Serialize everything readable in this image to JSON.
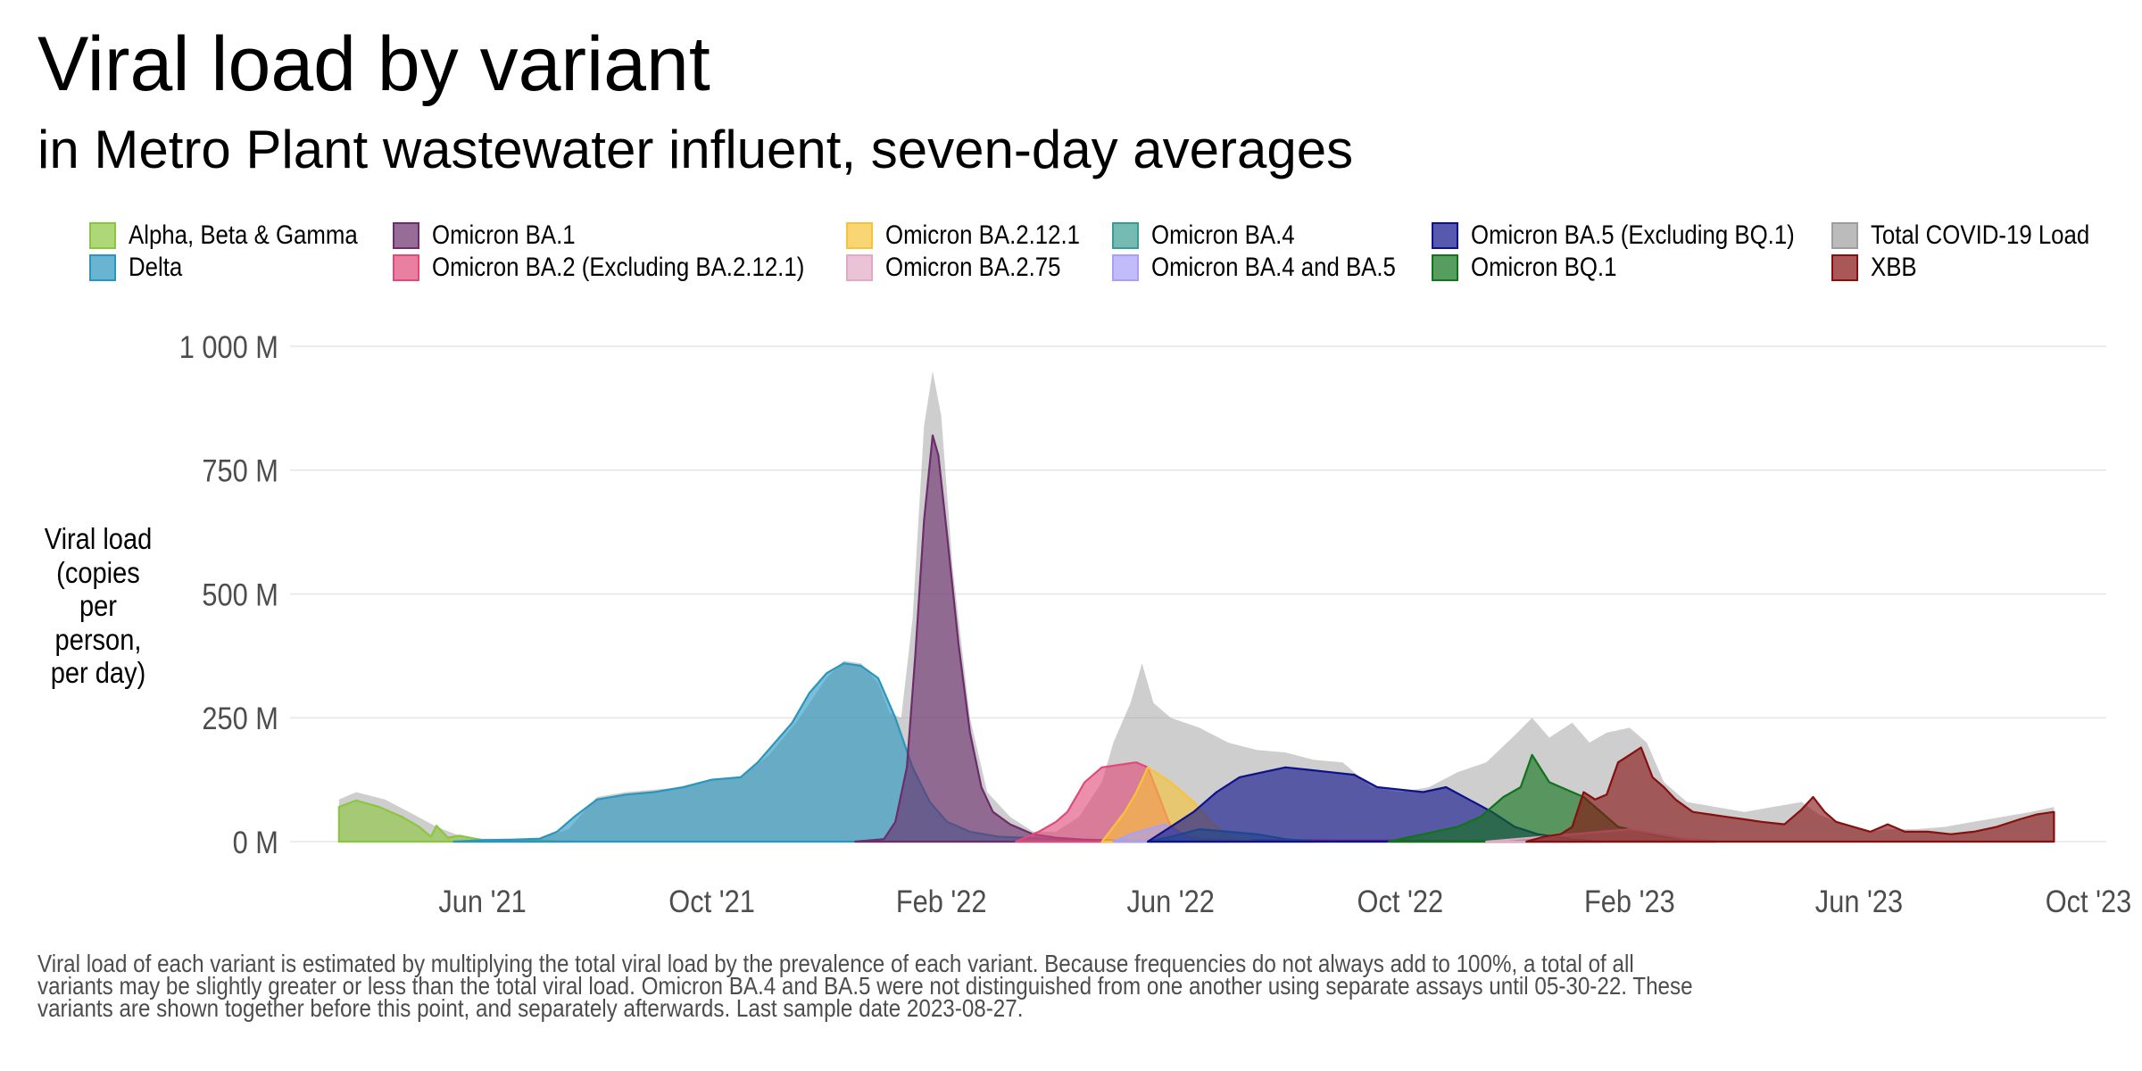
{
  "title": "Viral load by variant",
  "subtitle": "in Metro Plant wastewater influent, seven-day averages",
  "legend": [
    {
      "label": "Alpha, Beta & Gamma",
      "color": "#8CC63F"
    },
    {
      "label": "Delta",
      "color": "#2A96BE"
    },
    {
      "label": "Omicron BA.1",
      "color": "#6B2D6B"
    },
    {
      "label": "Omicron BA.2 (Excluding BA.2.12.1)",
      "color": "#E04A7A"
    },
    {
      "label": "Omicron BA.2.12.1",
      "color": "#F8C339"
    },
    {
      "label": "Omicron BA.2.75",
      "color": "#E3A9C4"
    },
    {
      "label": "Omicron BA.4",
      "color": "#3A9C93"
    },
    {
      "label": "Omicron BA.4 and BA.5",
      "color": "#A8A0F8"
    },
    {
      "label": "Omicron BA.5 (Excluding BQ.1)",
      "color": "#0E128A"
    },
    {
      "label": "Omicron BQ.1",
      "color": "#11731C"
    },
    {
      "label": "Total COVID-19 Load",
      "color": "#9E9E9E"
    },
    {
      "label": "XBB",
      "color": "#861010"
    }
  ],
  "y_axis_label": "Viral load\n(copies\nper\nperson,\nper day)",
  "caption_lines": [
    "Viral load of each variant is estimated by multiplying the total viral load by the prevalence of each variant. Because frequencies do not always add to 100%, a total of all",
    "variants may be slightly greater or less than the total viral load. Omicron BA.4 and BA.5 were not distinguished from one another using separate assays until 05-30-22. These",
    "variants are shown together before this point, and separately afterwards. Last sample date 2023-08-27."
  ],
  "chart_data": {
    "type": "area",
    "title": "Viral load by variant",
    "subtitle": "in Metro Plant wastewater influent, seven-day averages",
    "xlabel": "",
    "ylabel": "Viral load (copies per person, per day)",
    "x_unit": "months since 2021-01-01",
    "xlim": [
      0.9,
      33
    ],
    "ylim": [
      0,
      1000
    ],
    "y_unit": "million copies per person per day",
    "x_ticks": [
      {
        "x": 5,
        "label": "Jun '21"
      },
      {
        "x": 9,
        "label": "Oct '21"
      },
      {
        "x": 13,
        "label": "Feb '22"
      },
      {
        "x": 17,
        "label": "Jun '22"
      },
      {
        "x": 21,
        "label": "Oct '22"
      },
      {
        "x": 25,
        "label": "Feb '23"
      },
      {
        "x": 29,
        "label": "Jun '23"
      },
      {
        "x": 33,
        "label": "Oct '23"
      }
    ],
    "y_ticks": [
      {
        "y": 0,
        "label": "0 M"
      },
      {
        "y": 250,
        "label": "250 M"
      },
      {
        "y": 500,
        "label": "500 M"
      },
      {
        "y": 750,
        "label": "750 M"
      },
      {
        "y": 1000,
        "label": "1 000 M"
      }
    ],
    "grid": true,
    "legend_position": "top",
    "series": [
      {
        "name": "Total COVID-19 Load",
        "color": "#9E9E9E",
        "points": [
          [
            2.5,
            85
          ],
          [
            2.8,
            100
          ],
          [
            3.3,
            85
          ],
          [
            3.8,
            55
          ],
          [
            4.2,
            30
          ],
          [
            4.6,
            12
          ],
          [
            5,
            6
          ],
          [
            5.5,
            6
          ],
          [
            6,
            6
          ],
          [
            6.5,
            25
          ],
          [
            7,
            90
          ],
          [
            7.5,
            100
          ],
          [
            8,
            105
          ],
          [
            8.5,
            110
          ],
          [
            9,
            125
          ],
          [
            9.5,
            130
          ],
          [
            10,
            175
          ],
          [
            10.5,
            245
          ],
          [
            11,
            330
          ],
          [
            11.3,
            365
          ],
          [
            11.6,
            360
          ],
          [
            11.9,
            320
          ],
          [
            12.1,
            260
          ],
          [
            12.3,
            250
          ],
          [
            12.5,
            450
          ],
          [
            12.7,
            840
          ],
          [
            12.85,
            950
          ],
          [
            13,
            860
          ],
          [
            13.2,
            550
          ],
          [
            13.5,
            250
          ],
          [
            13.8,
            100
          ],
          [
            14.2,
            50
          ],
          [
            14.6,
            20
          ],
          [
            15,
            20
          ],
          [
            15.4,
            50
          ],
          [
            15.8,
            120
          ],
          [
            16,
            200
          ],
          [
            16.3,
            280
          ],
          [
            16.5,
            360
          ],
          [
            16.7,
            280
          ],
          [
            17,
            250
          ],
          [
            17.5,
            230
          ],
          [
            18,
            200
          ],
          [
            18.5,
            185
          ],
          [
            19,
            180
          ],
          [
            19.5,
            165
          ],
          [
            20,
            160
          ],
          [
            20.5,
            110
          ],
          [
            21,
            100
          ],
          [
            21.5,
            110
          ],
          [
            22,
            140
          ],
          [
            22.5,
            160
          ],
          [
            23,
            215
          ],
          [
            23.3,
            250
          ],
          [
            23.6,
            210
          ],
          [
            24,
            240
          ],
          [
            24.3,
            200
          ],
          [
            24.6,
            220
          ],
          [
            25,
            230
          ],
          [
            25.3,
            200
          ],
          [
            25.6,
            120
          ],
          [
            26,
            80
          ],
          [
            26.5,
            70
          ],
          [
            27,
            60
          ],
          [
            27.5,
            70
          ],
          [
            28,
            80
          ],
          [
            28.3,
            55
          ],
          [
            28.8,
            30
          ],
          [
            29.2,
            20
          ],
          [
            29.5,
            25
          ],
          [
            30,
            25
          ],
          [
            30.5,
            30
          ],
          [
            31,
            40
          ],
          [
            31.5,
            50
          ],
          [
            32,
            60
          ],
          [
            32.4,
            70
          ]
        ]
      },
      {
        "name": "Alpha, Beta & Gamma",
        "color": "#8CC63F",
        "points": [
          [
            2.5,
            70
          ],
          [
            2.8,
            83
          ],
          [
            3.2,
            70
          ],
          [
            3.6,
            50
          ],
          [
            3.9,
            30
          ],
          [
            4.1,
            10
          ],
          [
            4.2,
            32
          ],
          [
            4.4,
            8
          ],
          [
            4.6,
            12
          ],
          [
            5,
            3
          ],
          [
            5.5,
            2
          ],
          [
            6,
            2
          ],
          [
            6.5,
            0
          ]
        ]
      },
      {
        "name": "Delta",
        "color": "#2A96BE",
        "points": [
          [
            4.5,
            0
          ],
          [
            5,
            3
          ],
          [
            5.5,
            4
          ],
          [
            6,
            6
          ],
          [
            6.3,
            20
          ],
          [
            6.6,
            50
          ],
          [
            7,
            85
          ],
          [
            7.5,
            95
          ],
          [
            8,
            100
          ],
          [
            8.5,
            110
          ],
          [
            9,
            125
          ],
          [
            9.5,
            130
          ],
          [
            9.8,
            160
          ],
          [
            10.1,
            200
          ],
          [
            10.4,
            240
          ],
          [
            10.7,
            300
          ],
          [
            11,
            340
          ],
          [
            11.3,
            360
          ],
          [
            11.6,
            355
          ],
          [
            11.9,
            330
          ],
          [
            12.2,
            250
          ],
          [
            12.5,
            150
          ],
          [
            12.8,
            80
          ],
          [
            13.1,
            40
          ],
          [
            13.5,
            20
          ],
          [
            14,
            10
          ],
          [
            15,
            5
          ],
          [
            16,
            3
          ],
          [
            17,
            2
          ],
          [
            18,
            0
          ]
        ]
      },
      {
        "name": "Omicron BA.1",
        "color": "#6B2D6B",
        "points": [
          [
            11.5,
            0
          ],
          [
            12,
            5
          ],
          [
            12.2,
            40
          ],
          [
            12.4,
            150
          ],
          [
            12.55,
            380
          ],
          [
            12.7,
            650
          ],
          [
            12.85,
            820
          ],
          [
            12.95,
            780
          ],
          [
            13.1,
            620
          ],
          [
            13.3,
            400
          ],
          [
            13.5,
            220
          ],
          [
            13.7,
            110
          ],
          [
            13.9,
            60
          ],
          [
            14.2,
            35
          ],
          [
            14.6,
            15
          ],
          [
            15,
            8
          ],
          [
            15.5,
            4
          ],
          [
            16,
            2
          ],
          [
            16.5,
            0
          ]
        ]
      },
      {
        "name": "Omicron BA.2 (Excluding BA.2.12.1)",
        "color": "#E04A7A",
        "points": [
          [
            14.3,
            0
          ],
          [
            14.7,
            20
          ],
          [
            15,
            40
          ],
          [
            15.2,
            60
          ],
          [
            15.5,
            120
          ],
          [
            15.8,
            150
          ],
          [
            16.1,
            155
          ],
          [
            16.4,
            160
          ],
          [
            16.6,
            150
          ],
          [
            16.8,
            90
          ],
          [
            17,
            30
          ],
          [
            17.3,
            10
          ],
          [
            17.6,
            5
          ],
          [
            18,
            3
          ],
          [
            19,
            3
          ],
          [
            20,
            2
          ],
          [
            21,
            2
          ],
          [
            22,
            1
          ],
          [
            24,
            0
          ]
        ]
      },
      {
        "name": "Omicron BA.2.12.1",
        "color": "#F8C339",
        "points": [
          [
            15.8,
            0
          ],
          [
            16,
            30
          ],
          [
            16.2,
            60
          ],
          [
            16.4,
            100
          ],
          [
            16.6,
            150
          ],
          [
            16.8,
            135
          ],
          [
            17,
            120
          ],
          [
            17.2,
            100
          ],
          [
            17.4,
            80
          ],
          [
            17.7,
            40
          ],
          [
            18,
            10
          ],
          [
            18.5,
            0
          ]
        ]
      },
      {
        "name": "Omicron BA.4 and BA.5",
        "color": "#A8A0F8",
        "points": [
          [
            16,
            0
          ],
          [
            16.3,
            15
          ],
          [
            16.6,
            25
          ],
          [
            16.9,
            35
          ],
          [
            17.1,
            20
          ],
          [
            17.3,
            5
          ],
          [
            17.5,
            0
          ]
        ]
      },
      {
        "name": "Omicron BA.4",
        "color": "#3A9C93",
        "points": [
          [
            16.6,
            0
          ],
          [
            17,
            10
          ],
          [
            17.5,
            25
          ],
          [
            18,
            20
          ],
          [
            18.5,
            15
          ],
          [
            19,
            5
          ],
          [
            19.5,
            0
          ]
        ]
      },
      {
        "name": "Omicron BA.5 (Excluding BQ.1)",
        "color": "#0E128A",
        "points": [
          [
            16.6,
            0
          ],
          [
            17,
            30
          ],
          [
            17.4,
            60
          ],
          [
            17.8,
            100
          ],
          [
            18.2,
            130
          ],
          [
            18.6,
            140
          ],
          [
            19,
            150
          ],
          [
            19.4,
            145
          ],
          [
            19.8,
            140
          ],
          [
            20.2,
            135
          ],
          [
            20.6,
            110
          ],
          [
            21,
            105
          ],
          [
            21.4,
            100
          ],
          [
            21.8,
            110
          ],
          [
            22.2,
            85
          ],
          [
            22.6,
            60
          ],
          [
            23,
            30
          ],
          [
            23.4,
            15
          ],
          [
            24,
            5
          ],
          [
            24.5,
            0
          ]
        ]
      },
      {
        "name": "Omicron BQ.1",
        "color": "#11731C",
        "points": [
          [
            20.8,
            0
          ],
          [
            21.2,
            10
          ],
          [
            21.6,
            20
          ],
          [
            22,
            30
          ],
          [
            22.4,
            50
          ],
          [
            22.8,
            90
          ],
          [
            23.1,
            110
          ],
          [
            23.3,
            175
          ],
          [
            23.6,
            120
          ],
          [
            23.9,
            105
          ],
          [
            24.2,
            90
          ],
          [
            24.5,
            60
          ],
          [
            24.8,
            30
          ],
          [
            25.2,
            20
          ],
          [
            25.6,
            10
          ],
          [
            26,
            5
          ],
          [
            26.5,
            0
          ]
        ]
      },
      {
        "name": "Omicron BA.2.75",
        "color": "#E3A9C4",
        "points": [
          [
            22.5,
            0
          ],
          [
            23,
            5
          ],
          [
            23.5,
            10
          ],
          [
            24,
            15
          ],
          [
            24.5,
            20
          ],
          [
            25,
            25
          ],
          [
            25.5,
            15
          ],
          [
            26,
            5
          ],
          [
            26.5,
            0
          ]
        ]
      },
      {
        "name": "XBB",
        "color": "#861010",
        "points": [
          [
            23.2,
            0
          ],
          [
            23.5,
            10
          ],
          [
            23.8,
            15
          ],
          [
            24,
            30
          ],
          [
            24.2,
            100
          ],
          [
            24.4,
            85
          ],
          [
            24.6,
            95
          ],
          [
            24.8,
            160
          ],
          [
            25,
            175
          ],
          [
            25.2,
            190
          ],
          [
            25.4,
            130
          ],
          [
            25.6,
            110
          ],
          [
            25.8,
            85
          ],
          [
            26.1,
            60
          ],
          [
            26.4,
            55
          ],
          [
            26.7,
            50
          ],
          [
            27,
            45
          ],
          [
            27.3,
            40
          ],
          [
            27.7,
            35
          ],
          [
            28,
            65
          ],
          [
            28.2,
            90
          ],
          [
            28.4,
            60
          ],
          [
            28.6,
            40
          ],
          [
            28.9,
            30
          ],
          [
            29.2,
            20
          ],
          [
            29.5,
            35
          ],
          [
            29.8,
            20
          ],
          [
            30.2,
            20
          ],
          [
            30.6,
            15
          ],
          [
            31,
            20
          ],
          [
            31.4,
            30
          ],
          [
            31.8,
            45
          ],
          [
            32.1,
            55
          ],
          [
            32.4,
            60
          ],
          [
            32.4,
            0
          ]
        ]
      }
    ]
  }
}
